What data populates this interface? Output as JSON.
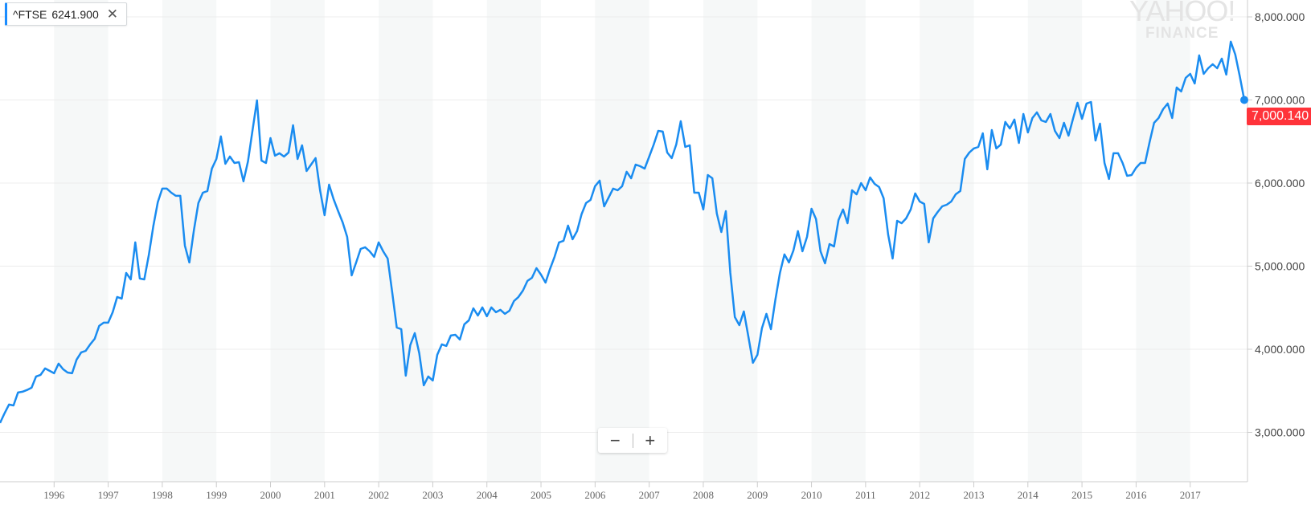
{
  "legend": {
    "symbol": "^FTSE",
    "value": "6241.900",
    "close_icon": "close-icon"
  },
  "watermark": {
    "line1": "YAHOO!",
    "line2": "FINANCE"
  },
  "zoom_controls": {
    "minus": "−",
    "plus": "+"
  },
  "last_price_badge": "7,000.140",
  "colors": {
    "line": "#1a8cf0",
    "badge": "#ff333a",
    "band": "#f6f8f8",
    "grid": "#ececec"
  },
  "chart_data": {
    "type": "line",
    "title": "",
    "series": [
      {
        "name": "^FTSE",
        "start": "1995-01",
        "frequency": "monthly",
        "values": [
          3112,
          3228,
          3334,
          3324,
          3479,
          3489,
          3510,
          3537,
          3672,
          3692,
          3769,
          3740,
          3711,
          3827,
          3759,
          3720,
          3711,
          3875,
          3962,
          3981,
          4059,
          4126,
          4281,
          4320,
          4320,
          4445,
          4629,
          4610,
          4918,
          4841,
          5286,
          4851,
          4841,
          5131,
          5479,
          5769,
          5933,
          5933,
          5884,
          5846,
          5846,
          5247,
          5044,
          5430,
          5759,
          5884,
          5904,
          6174,
          6290,
          6561,
          6232,
          6319,
          6242,
          6251,
          6020,
          6261,
          6630,
          6995,
          6271,
          6242,
          6541,
          6329,
          6358,
          6319,
          6367,
          6696,
          6290,
          6454,
          6145,
          6222,
          6300,
          5913,
          5614,
          5981,
          5807,
          5662,
          5527,
          5353,
          4889,
          5044,
          5208,
          5227,
          5179,
          5112,
          5286,
          5179,
          5092,
          4680,
          4262,
          4242,
          3682,
          4049,
          4194,
          3952,
          3566,
          3672,
          3624,
          3933,
          4059,
          4040,
          4165,
          4174,
          4117,
          4300,
          4348,
          4493,
          4406,
          4503,
          4397,
          4503,
          4445,
          4474,
          4426,
          4464,
          4580,
          4629,
          4706,
          4822,
          4860,
          4976,
          4899,
          4802,
          4967,
          5112,
          5286,
          5305,
          5488,
          5324,
          5421,
          5624,
          5759,
          5797,
          5962,
          6029,
          5720,
          5826,
          5933,
          5913,
          5962,
          6136,
          6058,
          6222,
          6203,
          6174,
          6319,
          6464,
          6628,
          6619,
          6367,
          6300,
          6464,
          6744,
          6435,
          6454,
          5884,
          5884,
          5682,
          6097,
          6058,
          5633,
          5411,
          5662,
          4918,
          4387,
          4290,
          4455,
          4155,
          3837,
          3933,
          4252,
          4426,
          4242,
          4600,
          4918,
          5141,
          5044,
          5189,
          5421,
          5179,
          5353,
          5691,
          5566,
          5179,
          5034,
          5266,
          5237,
          5556,
          5682,
          5517,
          5913,
          5865,
          6000,
          5913,
          6068,
          5990,
          5952,
          5817,
          5382,
          5092,
          5546,
          5517,
          5575,
          5682,
          5875,
          5778,
          5749,
          5286,
          5575,
          5652,
          5720,
          5739,
          5778,
          5865,
          5904,
          6290,
          6367,
          6416,
          6435,
          6599,
          6165,
          6638,
          6416,
          6464,
          6735,
          6657,
          6764,
          6483,
          6831,
          6609,
          6783,
          6850,
          6754,
          6735,
          6831,
          6628,
          6541,
          6725,
          6570,
          6773,
          6966,
          6773,
          6957,
          6976,
          6512,
          6715,
          6242,
          6049,
          6358,
          6358,
          6242,
          6087,
          6097,
          6184,
          6242,
          6242,
          6493,
          6725,
          6783,
          6889,
          6957,
          6783,
          7150,
          7102,
          7266,
          7314,
          7198,
          7536,
          7314,
          7382,
          7430,
          7382,
          7498,
          7305,
          7701,
          7546,
          7285,
          7000.14
        ]
      }
    ],
    "x_ticks": [
      "1996",
      "1997",
      "1998",
      "1999",
      "2000",
      "2001",
      "2002",
      "2003",
      "2004",
      "2005",
      "2006",
      "2007",
      "2008",
      "2009",
      "2010",
      "2011",
      "2012",
      "2013",
      "2014",
      "2015",
      "2016",
      "2017"
    ],
    "y_ticks": [
      {
        "value": 8000,
        "label": "8,000.000"
      },
      {
        "value": 7000,
        "label": "7,000.000"
      },
      {
        "value": 6000,
        "label": "6,000.000"
      },
      {
        "value": 5000,
        "label": "5,000.000"
      },
      {
        "value": 4000,
        "label": "4,000.000"
      },
      {
        "value": 3000,
        "label": "3,000.000"
      }
    ],
    "ylim": [
      2400,
      8200
    ],
    "y_axis_position": "right",
    "shaded_years": [
      "1996",
      "1998",
      "2000",
      "2002",
      "2004",
      "2006",
      "2008",
      "2010",
      "2012",
      "2014",
      "2016"
    ],
    "grid": true,
    "xlabel": "",
    "ylabel": ""
  }
}
